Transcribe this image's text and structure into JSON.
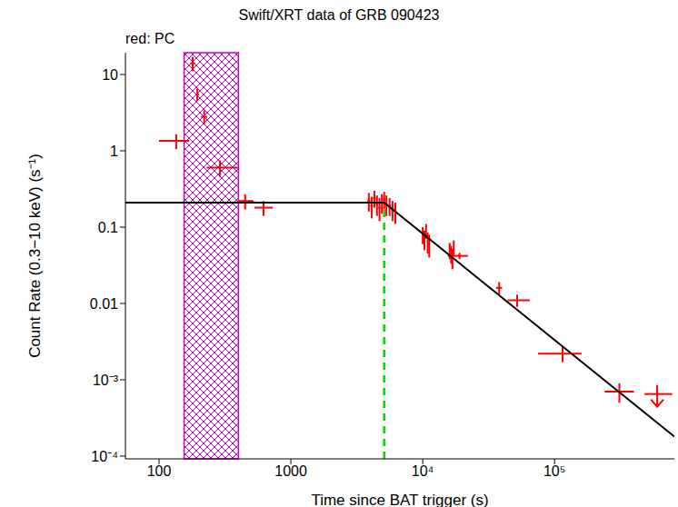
{
  "chart_data": {
    "type": "scatter",
    "title": "Swift/XRT data of GRB 090423",
    "subtitle": "red: PC",
    "x_label": "Time since BAT trigger (s)",
    "y_label": "Count Rate (0.3−10 keV) (s⁻¹)",
    "log": true,
    "xlim": [
      55.6,
      810000
    ],
    "ylim": [
      9.2e-05,
      19.3
    ],
    "xticks": [
      100,
      1000,
      {
        "value": 10000,
        "label": "10⁴"
      },
      {
        "value": 100000,
        "label": "10⁵"
      }
    ],
    "yticks": [
      {
        "value": 0.0001,
        "label": "10⁻⁴"
      },
      {
        "value": 0.001,
        "label": "10⁻³"
      },
      0.01,
      0.1,
      1,
      10
    ],
    "series": [
      {
        "color": "#ff0000",
        "marker": "cross",
        "x": [
          135,
          180,
          195,
          220,
          290,
          450,
          620,
          3900,
          4100,
          4300,
          4500,
          4700,
          4900,
          5100,
          5300,
          5600,
          5900,
          6200,
          10000,
          10300,
          10600,
          10900,
          11200,
          16000,
          16400,
          16800,
          17200,
          19000,
          38000,
          52000,
          115000,
          310000
        ],
        "values": [
          1.35,
          14,
          5.5,
          2.8,
          0.6,
          0.22,
          0.18,
          0.22,
          0.19,
          0.24,
          0.2,
          0.18,
          0.21,
          0.23,
          0.2,
          0.19,
          0.17,
          0.16,
          0.08,
          0.07,
          0.09,
          0.065,
          0.06,
          0.05,
          0.045,
          0.04,
          0.055,
          0.042,
          0.016,
          0.011,
          0.0022,
          0.0007
        ],
        "x_err_minus": [
          35,
          8,
          6,
          12,
          60,
          50,
          90,
          100,
          100,
          100,
          100,
          100,
          100,
          100,
          100,
          150,
          150,
          150,
          150,
          150,
          150,
          150,
          150,
          200,
          200,
          200,
          200,
          3500,
          2000,
          8000,
          40000,
          70000
        ],
        "x_err_plus": [
          35,
          8,
          6,
          12,
          110,
          70,
          110,
          100,
          100,
          100,
          100,
          100,
          100,
          100,
          100,
          150,
          150,
          150,
          150,
          150,
          150,
          150,
          150,
          200,
          200,
          200,
          200,
          3000,
          2000,
          13000,
          45000,
          90000
        ],
        "y_err": [
          0.3,
          3,
          1,
          0.6,
          0.15,
          0.05,
          0.04,
          0.06,
          0.06,
          0.06,
          0.06,
          0.06,
          0.06,
          0.06,
          0.06,
          0.05,
          0.05,
          0.05,
          0.02,
          0.02,
          0.02,
          0.02,
          0.02,
          0.012,
          0.012,
          0.012,
          0.012,
          0.004,
          0.003,
          0.002,
          0.0005,
          0.0002
        ]
      }
    ],
    "upper_limits": {
      "color": "#ff0000",
      "x": [
        600000
      ],
      "values": [
        0.00065
      ],
      "x_err_minus": [
        120000
      ],
      "x_err_plus": [
        180000
      ]
    },
    "model": {
      "type": "line",
      "color": "#000000",
      "x": [
        55.6,
        5100,
        810000
      ],
      "values": [
        0.21,
        0.21,
        0.00018
      ]
    },
    "break_time": {
      "x": 5100,
      "color": "#00dd00",
      "line_style": "dashed"
    },
    "shaded_region": {
      "x": [
        155,
        400
      ],
      "color": "#cc00cc"
    }
  }
}
